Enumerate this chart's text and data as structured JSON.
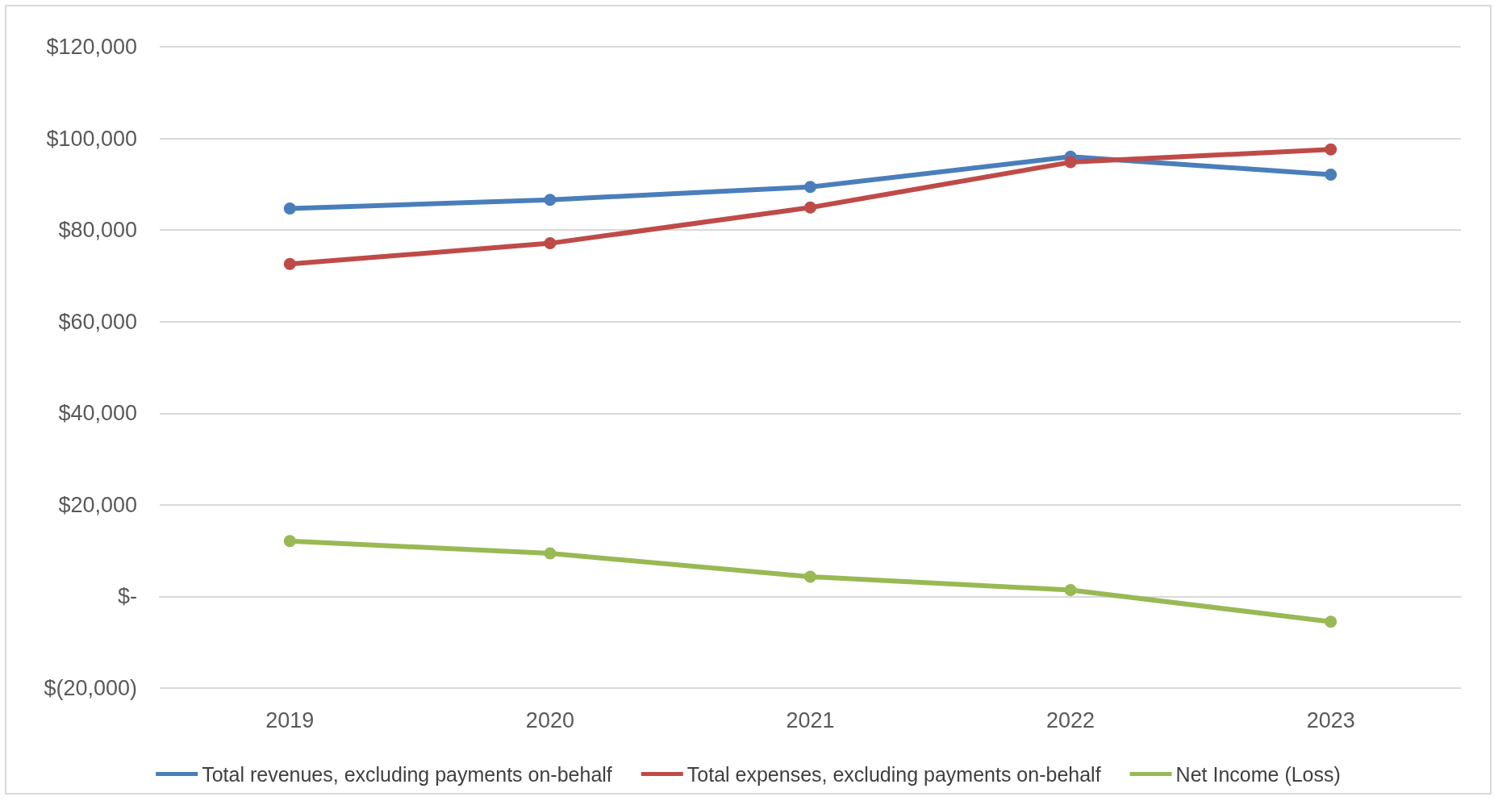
{
  "chart_data": {
    "type": "line",
    "categories": [
      "2019",
      "2020",
      "2021",
      "2022",
      "2023"
    ],
    "series": [
      {
        "name": "Total revenues, excluding payments on-behalf",
        "color": "#4a7ebb",
        "values": [
          84700,
          86600,
          89400,
          96000,
          92100
        ]
      },
      {
        "name": "Total expenses, excluding payments on-behalf",
        "color": "#be4b48",
        "values": [
          72600,
          77100,
          84900,
          94800,
          97600
        ]
      },
      {
        "name": "Net Income (Loss)",
        "color": "#98b954",
        "values": [
          12100,
          9400,
          4300,
          1400,
          -5500
        ]
      }
    ],
    "ylim": [
      -20000,
      120000
    ],
    "yticks": [
      {
        "value": -20000,
        "label": "$(20,000)"
      },
      {
        "value": 0,
        "label": "$-"
      },
      {
        "value": 20000,
        "label": "$20,000"
      },
      {
        "value": 40000,
        "label": "$40,000"
      },
      {
        "value": 60000,
        "label": "$60,000"
      },
      {
        "value": 80000,
        "label": "$80,000"
      },
      {
        "value": 100000,
        "label": "$100,000"
      },
      {
        "value": 120000,
        "label": "$120,000"
      }
    ],
    "grid": "y",
    "legend": "bottom",
    "marker": "circle",
    "line_style": "solid"
  }
}
